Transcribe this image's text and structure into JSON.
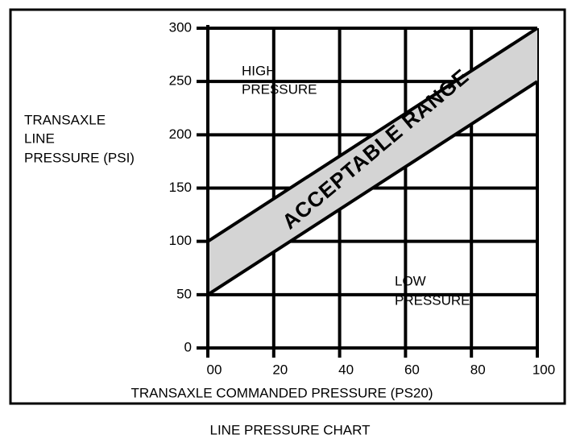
{
  "chart_data": {
    "type": "band",
    "caption": "LINE PRESSURE CHART",
    "x_label": "TRANSAXLE COMMANDED PRESSURE (PS20)",
    "y_label": [
      "TRANSAXLE",
      "LINE",
      "PRESSURE (PSI)"
    ],
    "x": [
      0,
      100
    ],
    "band": {
      "lower": [
        50,
        250
      ],
      "upper": [
        100,
        300
      ],
      "color": "#d4d4d4",
      "line_color": "#000000"
    },
    "annotations": [
      {
        "lines": [
          "HIGH",
          "PRESSURE"
        ]
      },
      {
        "lines": [
          "ACCEPTABLE RANGE"
        ]
      },
      {
        "lines": [
          "LOW",
          "PRESSURE"
        ]
      }
    ],
    "xlim": [
      0,
      100
    ],
    "xticks": [
      {
        "value": 0,
        "label": "00"
      },
      20,
      40,
      60,
      80,
      100
    ],
    "ylim": [
      0,
      300
    ],
    "yticks": [
      0,
      50,
      100,
      150,
      200,
      250,
      300
    ],
    "grid": true
  }
}
